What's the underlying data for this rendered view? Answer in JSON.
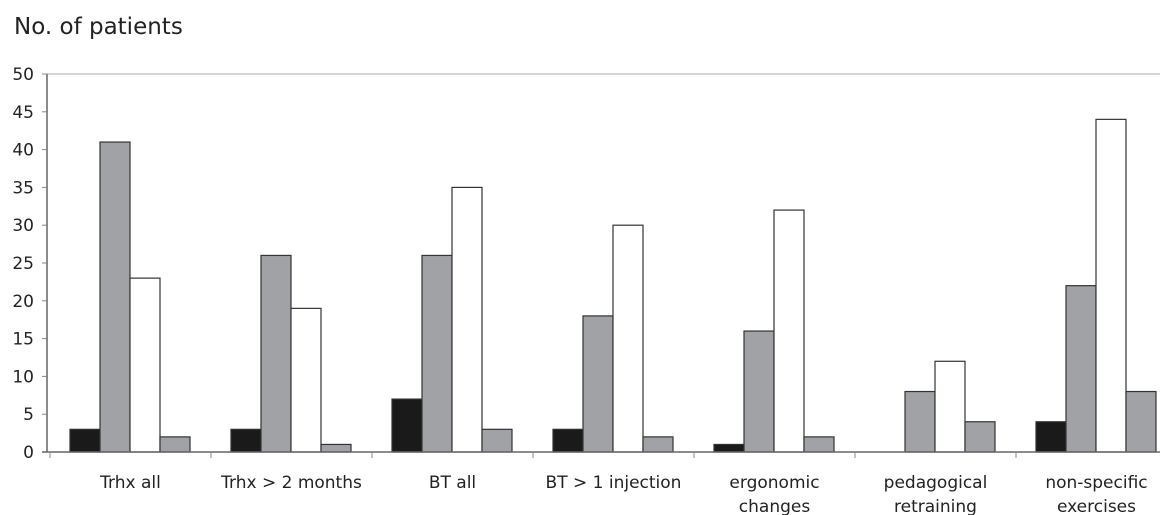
{
  "chart_data": {
    "type": "bar",
    "title": "No. of patients",
    "xlabel": "",
    "ylabel": "",
    "ylim": [
      0,
      50
    ],
    "yticks": [
      0,
      5,
      10,
      15,
      20,
      25,
      30,
      35,
      40,
      45,
      50
    ],
    "grid": false,
    "legend": "none",
    "categories": [
      [
        "Trhx all"
      ],
      [
        "Trhx > 2 months"
      ],
      [
        "BT all"
      ],
      [
        "BT > 1 injection"
      ],
      [
        "ergonomic",
        "changes"
      ],
      [
        "pedagogical",
        "retraining"
      ],
      [
        "non-specific",
        "exercises"
      ]
    ],
    "series": [
      {
        "color": "#1a1a1a",
        "values": [
          3,
          3,
          7,
          3,
          1,
          0,
          4
        ]
      },
      {
        "color": "#a0a2a5",
        "values": [
          41,
          26,
          26,
          18,
          16,
          8,
          22
        ]
      },
      {
        "color": "#ffffff",
        "values": [
          23,
          19,
          35,
          30,
          32,
          12,
          44
        ]
      },
      {
        "color": "#a0a2a5",
        "values": [
          2,
          1,
          3,
          2,
          2,
          4,
          8
        ]
      }
    ]
  }
}
